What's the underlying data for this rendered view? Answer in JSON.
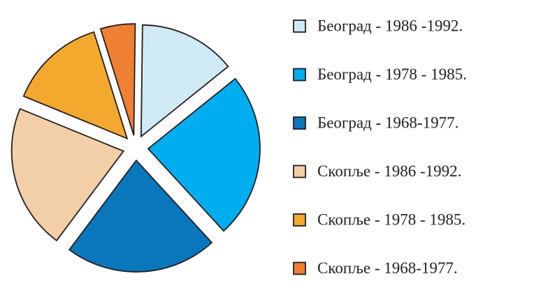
{
  "chart_data": {
    "type": "pie",
    "categories": [
      "Београд - 1986 -1992.",
      "Београд - 1978 - 1985.",
      "Београд - 1968-1977.",
      "Скопље - 1986 -1992.",
      "Скопље - 1978 - 1985.",
      "Скопље - 1968-1977."
    ],
    "values": [
      14,
      24,
      22,
      21,
      14,
      5
    ],
    "colors": [
      "#cfe9f5",
      "#00aeef",
      "#0a77bd",
      "#f3cfa8",
      "#f2a92e",
      "#ef7f33"
    ],
    "legend": "right"
  }
}
